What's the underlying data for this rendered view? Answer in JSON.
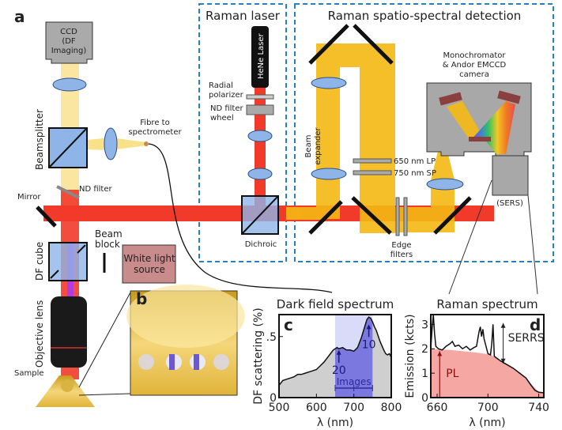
{
  "panel_labels": {
    "a": "a",
    "b": "b",
    "c": "c",
    "d": "d"
  },
  "boxes": {
    "raman_laser": "Raman laser",
    "raman_detection": "Raman spatio-spectral detection"
  },
  "labels": {
    "ccd": [
      "CCD",
      "(DF",
      "Imaging)"
    ],
    "beamsplitter": "Beamsplitter",
    "fibre": [
      "Fibre to",
      "spectrometer"
    ],
    "nd_filter": "ND filter",
    "mirror": "Mirror",
    "beam_block": [
      "Beam",
      "block"
    ],
    "df_cube": "DF cube",
    "white_light": [
      "White light",
      "source"
    ],
    "objective": "Objective lens",
    "sample": "Sample",
    "hene": "HeNe Laser",
    "radial_polarizer": [
      "Radial",
      "polarizer"
    ],
    "nd_filter_wheel": [
      "ND filter",
      "wheel"
    ],
    "dichroic": "Dichroic",
    "beam_expander": [
      "Beam",
      "expander"
    ],
    "lp": "650 nm LP",
    "sp": "750 nm SP",
    "edge_filters": [
      "Edge",
      "filters"
    ],
    "monochromator": [
      "Monochromator",
      "& Andor EMCCD",
      "camera"
    ],
    "sers": "(SERS)"
  },
  "colors": {
    "red_beam": "#f23a2a",
    "yellow_beam": "#f5b914",
    "optic_blue": "#8fb5e8",
    "dashed_box": "#2a7fc0",
    "white_light": "#c98b8b",
    "gray": "#a8a8a8"
  },
  "chart_data": [
    {
      "type": "area",
      "panel": "c",
      "title": "Dark field spectrum",
      "xlabel": "λ (nm)",
      "ylabel": "DF scattering (%)",
      "xlim": [
        500,
        800
      ],
      "ylim": [
        0,
        0.68
      ],
      "xticks": [
        500,
        600,
        700,
        800
      ],
      "yticks": [
        {
          "v": 0,
          "label": "0"
        },
        {
          "v": 0.5,
          "label": ".5"
        }
      ],
      "highlight_range": [
        650,
        750
      ],
      "highlight_label": "Images",
      "x": [
        500,
        505,
        510,
        520,
        530,
        540,
        550,
        560,
        570,
        580,
        590,
        600,
        610,
        620,
        630,
        640,
        645,
        650,
        655,
        660,
        670,
        680,
        690,
        700,
        710,
        715,
        720,
        725,
        730,
        735,
        740,
        745,
        750,
        755,
        760,
        770,
        780,
        785,
        790,
        795,
        800
      ],
      "y": [
        0.1,
        0.12,
        0.14,
        0.15,
        0.16,
        0.17,
        0.19,
        0.19,
        0.2,
        0.21,
        0.22,
        0.23,
        0.26,
        0.29,
        0.33,
        0.37,
        0.39,
        0.4,
        0.41,
        0.4,
        0.41,
        0.39,
        0.39,
        0.38,
        0.41,
        0.45,
        0.49,
        0.54,
        0.59,
        0.64,
        0.66,
        0.65,
        0.62,
        0.58,
        0.55,
        0.46,
        0.39,
        0.36,
        0.35,
        0.36,
        0.33
      ],
      "annotations": [
        {
          "x": 660,
          "y": 0.39,
          "label": "20"
        },
        {
          "x": 740,
          "y": 0.6,
          "label": "10"
        }
      ]
    },
    {
      "type": "area",
      "panel": "d",
      "title": "Raman spectrum",
      "xlabel": "λ (nm)",
      "ylabel": "Emission (kcts)",
      "xlim": [
        655,
        744
      ],
      "ylim": [
        0,
        3.4
      ],
      "xticks": [
        660,
        700,
        740
      ],
      "yticks": [
        {
          "v": 0,
          "label": "0"
        },
        {
          "v": 1,
          "label": "1"
        },
        {
          "v": 2,
          "label": "2"
        },
        {
          "v": 3,
          "label": "3"
        }
      ],
      "pl_label": "PL",
      "serrs_label": "SERRS",
      "pl_x": [
        655,
        670,
        690,
        700,
        705,
        710,
        720,
        730,
        736,
        740,
        744
      ],
      "pl_y": [
        2.0,
        1.95,
        1.85,
        1.78,
        1.68,
        1.5,
        1.2,
        0.8,
        0.45,
        0.22,
        0.2
      ],
      "x": [
        655,
        656,
        657,
        658,
        659,
        661,
        664,
        667,
        670,
        672,
        674,
        677,
        680,
        683,
        686,
        689,
        691,
        693,
        694,
        695,
        696,
        697,
        698,
        700,
        702,
        703,
        704,
        705,
        706,
        710,
        715,
        720,
        725,
        730,
        734,
        737,
        740,
        744
      ],
      "y": [
        2.0,
        2.8,
        3.4,
        2.6,
        2.1,
        2.0,
        1.95,
        2.1,
        2.2,
        2.3,
        2.1,
        2.15,
        2.0,
        2.1,
        1.95,
        2.05,
        2.1,
        2.7,
        2.9,
        2.5,
        2.8,
        2.4,
        2.2,
        1.8,
        1.75,
        2.2,
        3.0,
        1.7,
        1.65,
        1.5,
        1.35,
        1.2,
        1.0,
        0.8,
        0.5,
        0.3,
        0.22,
        0.2
      ]
    }
  ]
}
